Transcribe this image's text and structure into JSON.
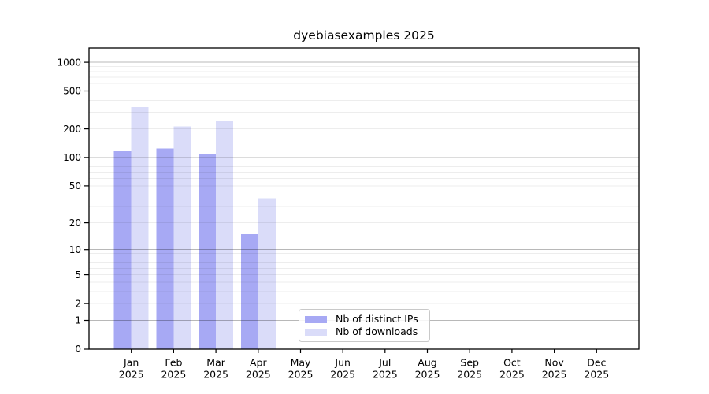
{
  "page": {
    "background": "#ffffff"
  },
  "chart_data": {
    "type": "bar",
    "title": "dyebiasexamples 2025",
    "xlabel": "",
    "ylabel": "",
    "yscale": "log1p",
    "ylim": [
      0,
      1410
    ],
    "grid": true,
    "legend_position": "lower center",
    "categories": [
      {
        "month": "Jan",
        "year": "2025"
      },
      {
        "month": "Feb",
        "year": "2025"
      },
      {
        "month": "Mar",
        "year": "2025"
      },
      {
        "month": "Apr",
        "year": "2025"
      },
      {
        "month": "May",
        "year": "2025"
      },
      {
        "month": "Jun",
        "year": "2025"
      },
      {
        "month": "Jul",
        "year": "2025"
      },
      {
        "month": "Aug",
        "year": "2025"
      },
      {
        "month": "Sep",
        "year": "2025"
      },
      {
        "month": "Oct",
        "year": "2025"
      },
      {
        "month": "Nov",
        "year": "2025"
      },
      {
        "month": "Dec",
        "year": "2025"
      }
    ],
    "series": [
      {
        "name": "Nb of distinct IPs",
        "color": "#a7a9f4",
        "values": [
          117,
          124,
          108,
          15,
          0,
          0,
          0,
          0,
          0,
          0,
          0,
          0
        ]
      },
      {
        "name": "Nb of downloads",
        "color": "#dadcf9",
        "values": [
          340,
          212,
          240,
          37,
          0,
          0,
          0,
          0,
          0,
          0,
          0,
          0
        ]
      }
    ],
    "ytick_values": [
      1000,
      500,
      200,
      100,
      50,
      20,
      10,
      5,
      2,
      1,
      0
    ],
    "ytick_labels": [
      "1000",
      "500",
      "200",
      "100",
      "50",
      "20",
      "10",
      "5",
      "2",
      "1",
      "0"
    ],
    "gridlines": {
      "major": [
        1,
        10,
        100,
        1000
      ],
      "minor": [
        2,
        3,
        4,
        5,
        6,
        7,
        8,
        9,
        20,
        30,
        40,
        50,
        60,
        70,
        80,
        90,
        200,
        300,
        400,
        500,
        600,
        700,
        800,
        900
      ]
    },
    "colors": {
      "axis": "#000000",
      "tick_text": "#000000",
      "grid_major": "rgba(0,0,0,0.28)",
      "grid_minor": "rgba(0,0,0,0.07)"
    }
  }
}
